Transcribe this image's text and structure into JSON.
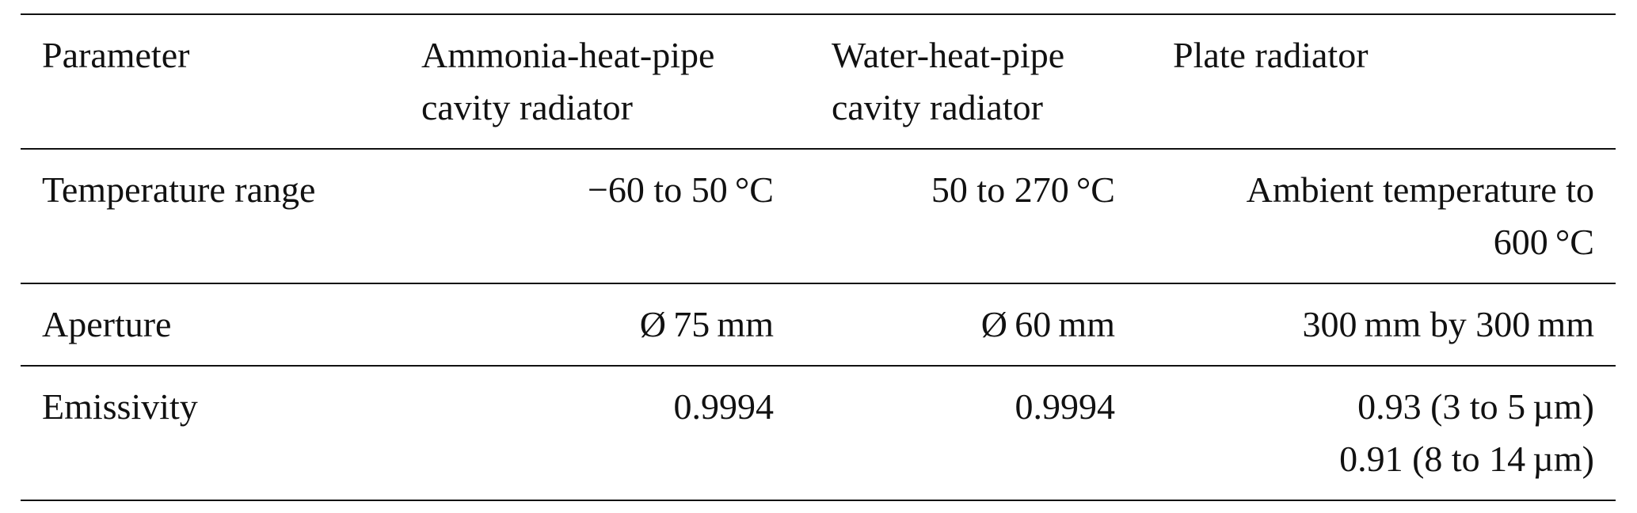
{
  "table": {
    "header": [
      [
        "Parameter"
      ],
      [
        "Ammonia-heat-pipe",
        "cavity radiator"
      ],
      [
        "Water-heat-pipe",
        "cavity radiator"
      ],
      [
        "Plate radiator"
      ]
    ],
    "rows": [
      [
        [
          "Temperature range"
        ],
        [
          "−60 to 50 °C"
        ],
        [
          "50 to 270 °C"
        ],
        [
          "Ambient temperature to",
          "600 °C"
        ]
      ],
      [
        [
          "Aperture"
        ],
        [
          "Ø 75 mm"
        ],
        [
          "Ø 60 mm"
        ],
        [
          "300 mm by 300 mm"
        ]
      ],
      [
        [
          "Emissivity"
        ],
        [
          "0.9994"
        ],
        [
          "0.9994"
        ],
        [
          "0.93 (3 to 5 µm)",
          "0.91 (8 to 14 µm)"
        ]
      ]
    ]
  }
}
